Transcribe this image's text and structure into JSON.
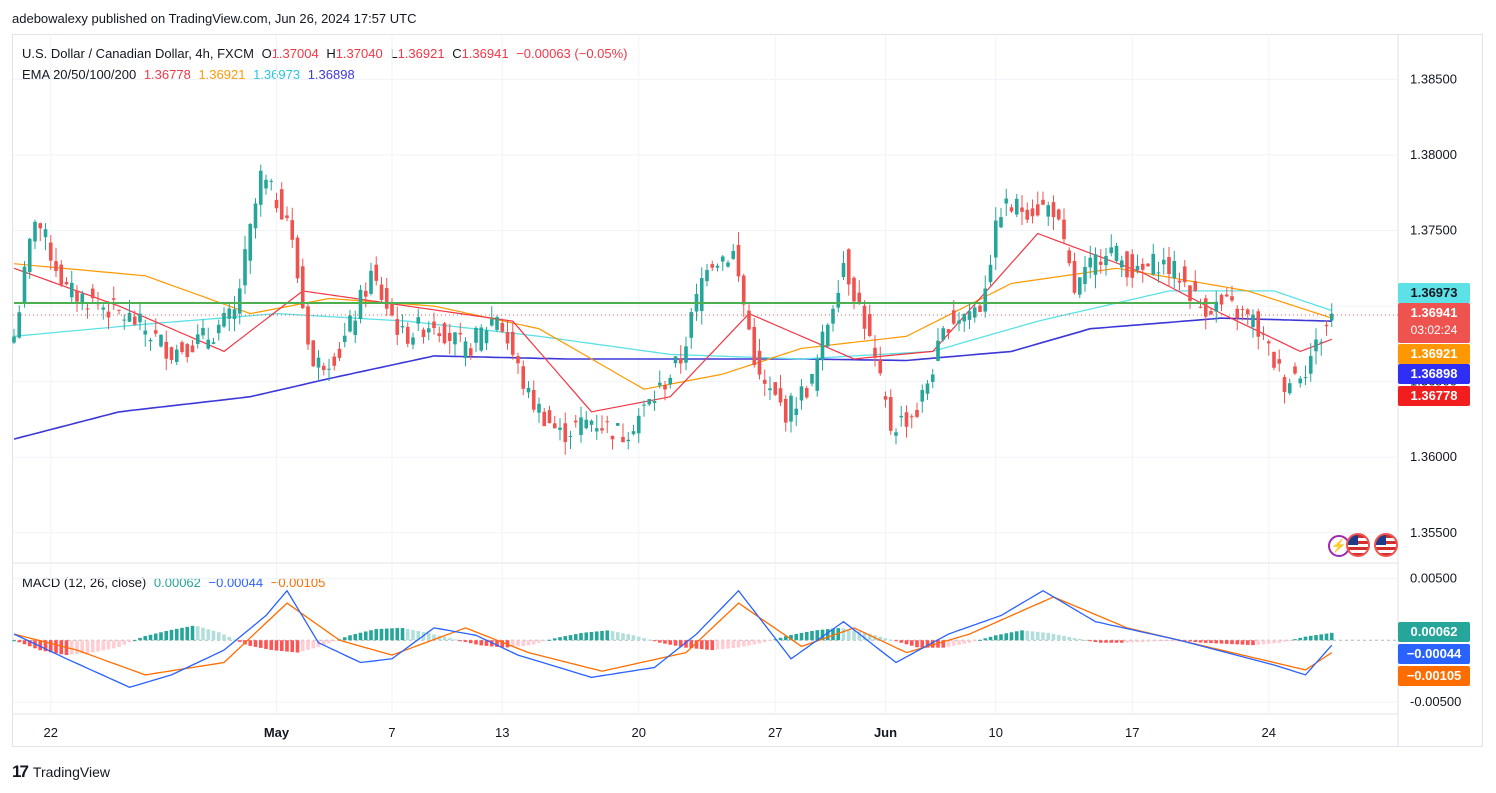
{
  "header": {
    "publisher": "adebowalexy published on TradingView.com, Jun 26, 2024 17:57 UTC"
  },
  "legend": {
    "symbol": "U.S. Dollar / Canadian Dollar, 4h, FXCM",
    "o_label": "O",
    "o_value": "1.37004",
    "h_label": "H",
    "h_value": "1.37040",
    "l_label": "L",
    "l_value": "1.36921",
    "c_label": "C",
    "c_value": "1.36941",
    "change": "−0.00063 (−0.05%)",
    "ema_label": "EMA 20/50/100/200",
    "ema20": "1.36778",
    "ema50": "1.36921",
    "ema100": "1.36973",
    "ema200": "1.36898",
    "macd_label": "MACD (12, 26, close)",
    "macd_hist": "0.00062",
    "macd_line": "−0.00044",
    "macd_signal": "−0.00105"
  },
  "badges": {
    "ema100": "1.36973",
    "price": "1.36941",
    "countdown": "03:02:24",
    "ema50": "1.36921",
    "ema200": "1.36898",
    "ema20": "1.36778",
    "macd_hist": "0.00062",
    "macd_line": "−0.00044",
    "macd_signal": "−0.00105"
  },
  "colors": {
    "up": "#26a69a",
    "down": "#ef5350",
    "ema20": "#f23645",
    "ema50": "#ff9800",
    "ema100": "#5ce1e6",
    "ema200": "#3c38d8",
    "resistance": "#4caf50",
    "macd": "#2962ff",
    "signal": "#ff6d00"
  },
  "footer": {
    "brand": "TradingView"
  },
  "chart_data": [
    {
      "type": "candlestick",
      "title": "U.S. Dollar / Canadian Dollar, 4h, FXCM",
      "ylim": [
        1.353,
        1.388
      ],
      "y_ticks": [
        "1.38500",
        "1.38000",
        "1.37500",
        "1.37000",
        "1.36500",
        "1.36000",
        "1.35500"
      ],
      "y_tick_values": [
        1.385,
        1.38,
        1.375,
        1.37,
        1.365,
        1.36,
        1.355
      ],
      "x_ticks": [
        "22",
        "May",
        "7",
        "13",
        "20",
        "27",
        "Jun",
        "10",
        "17",
        "24"
      ],
      "x_tick_index": [
        7,
        50,
        72,
        93,
        119,
        145,
        166,
        187,
        213,
        239
      ],
      "close_anchors": [
        [
          0,
          1.368
        ],
        [
          4,
          1.376
        ],
        [
          10,
          1.371
        ],
        [
          17,
          1.37
        ],
        [
          23,
          1.369
        ],
        [
          30,
          1.367
        ],
        [
          37,
          1.368
        ],
        [
          42,
          1.3695
        ],
        [
          47,
          1.3785
        ],
        [
          52,
          1.376
        ],
        [
          57,
          1.366
        ],
        [
          62,
          1.367
        ],
        [
          68,
          1.372
        ],
        [
          74,
          1.368
        ],
        [
          80,
          1.369
        ],
        [
          86,
          1.367
        ],
        [
          92,
          1.3695
        ],
        [
          98,
          1.364
        ],
        [
          104,
          1.3615
        ],
        [
          110,
          1.3625
        ],
        [
          116,
          1.3615
        ],
        [
          122,
          1.364
        ],
        [
          127,
          1.3665
        ],
        [
          132,
          1.373
        ],
        [
          137,
          1.3735
        ],
        [
          142,
          1.365
        ],
        [
          147,
          1.363
        ],
        [
          152,
          1.365
        ],
        [
          158,
          1.373
        ],
        [
          162,
          1.369
        ],
        [
          167,
          1.362
        ],
        [
          172,
          1.363
        ],
        [
          178,
          1.369
        ],
        [
          184,
          1.37
        ],
        [
          188,
          1.3765
        ],
        [
          194,
          1.3765
        ],
        [
          198,
          1.3765
        ],
        [
          202,
          1.371
        ],
        [
          208,
          1.374
        ],
        [
          214,
          1.372
        ],
        [
          218,
          1.373
        ],
        [
          222,
          1.372
        ],
        [
          226,
          1.37
        ],
        [
          231,
          1.37
        ],
        [
          236,
          1.369
        ],
        [
          242,
          1.365
        ],
        [
          246,
          1.366
        ],
        [
          251,
          1.3694
        ]
      ],
      "ema": {
        "ema20": [
          [
            0,
            1.3725
          ],
          [
            20,
            1.37
          ],
          [
            40,
            1.367
          ],
          [
            55,
            1.371
          ],
          [
            75,
            1.37
          ],
          [
            95,
            1.369
          ],
          [
            110,
            1.363
          ],
          [
            125,
            1.364
          ],
          [
            140,
            1.3695
          ],
          [
            160,
            1.3665
          ],
          [
            175,
            1.367
          ],
          [
            195,
            1.3748
          ],
          [
            215,
            1.3722
          ],
          [
            230,
            1.3695
          ],
          [
            245,
            1.367
          ],
          [
            251,
            1.3678
          ]
        ],
        "ema50": [
          [
            0,
            1.3728
          ],
          [
            25,
            1.372
          ],
          [
            45,
            1.3695
          ],
          [
            60,
            1.3705
          ],
          [
            80,
            1.37
          ],
          [
            100,
            1.3685
          ],
          [
            120,
            1.3645
          ],
          [
            135,
            1.3655
          ],
          [
            150,
            1.3672
          ],
          [
            170,
            1.368
          ],
          [
            190,
            1.3715
          ],
          [
            210,
            1.3725
          ],
          [
            235,
            1.371
          ],
          [
            251,
            1.3692
          ]
        ],
        "ema100": [
          [
            0,
            1.368
          ],
          [
            25,
            1.3688
          ],
          [
            50,
            1.3695
          ],
          [
            75,
            1.369
          ],
          [
            100,
            1.368
          ],
          [
            125,
            1.3668
          ],
          [
            150,
            1.3665
          ],
          [
            175,
            1.367
          ],
          [
            195,
            1.369
          ],
          [
            220,
            1.371
          ],
          [
            240,
            1.371
          ],
          [
            251,
            1.3697
          ]
        ],
        "ema200": [
          [
            0,
            1.3612
          ],
          [
            20,
            1.363
          ],
          [
            45,
            1.364
          ],
          [
            60,
            1.3652
          ],
          [
            80,
            1.3667
          ],
          [
            105,
            1.3665
          ],
          [
            130,
            1.3665
          ],
          [
            150,
            1.3665
          ],
          [
            170,
            1.3664
          ],
          [
            190,
            1.367
          ],
          [
            205,
            1.3685
          ],
          [
            230,
            1.3692
          ],
          [
            251,
            1.369
          ]
        ]
      },
      "resistance_line": {
        "x": [
          0,
          229
        ],
        "y": 1.3702
      },
      "current_price": 1.36941
    },
    {
      "type": "macd",
      "title": "MACD (12, 26, close)",
      "ylim": [
        -0.0058,
        0.006
      ],
      "y_ticks": [
        "0.00500",
        "-0.00500"
      ],
      "y_tick_values": [
        0.005,
        -0.005
      ],
      "macd_line": [
        [
          0,
          0.0005
        ],
        [
          10,
          -0.0015
        ],
        [
          22,
          -0.0038
        ],
        [
          30,
          -0.0028
        ],
        [
          40,
          -0.0008
        ],
        [
          48,
          0.002
        ],
        [
          52,
          0.004
        ],
        [
          58,
          -0.0002
        ],
        [
          66,
          -0.0018
        ],
        [
          72,
          -0.0015
        ],
        [
          80,
          0.001
        ],
        [
          88,
          0.0004
        ],
        [
          96,
          -0.0012
        ],
        [
          110,
          -0.003
        ],
        [
          122,
          -0.0022
        ],
        [
          130,
          0.0005
        ],
        [
          138,
          0.004
        ],
        [
          148,
          -0.0015
        ],
        [
          158,
          0.0015
        ],
        [
          168,
          -0.0018
        ],
        [
          178,
          0.0005
        ],
        [
          188,
          0.002
        ],
        [
          196,
          0.004
        ],
        [
          206,
          0.0015
        ],
        [
          222,
          0.0
        ],
        [
          240,
          -0.002
        ],
        [
          246,
          -0.0028
        ],
        [
          251,
          -0.0004
        ]
      ],
      "signal_line": [
        [
          0,
          0.0005
        ],
        [
          12,
          -0.0008
        ],
        [
          25,
          -0.0028
        ],
        [
          40,
          -0.0018
        ],
        [
          52,
          0.003
        ],
        [
          62,
          0.0
        ],
        [
          72,
          -0.0012
        ],
        [
          86,
          0.001
        ],
        [
          98,
          -0.001
        ],
        [
          112,
          -0.0025
        ],
        [
          128,
          -0.001
        ],
        [
          138,
          0.003
        ],
        [
          150,
          -0.0005
        ],
        [
          160,
          0.001
        ],
        [
          170,
          -0.001
        ],
        [
          182,
          0.0005
        ],
        [
          198,
          0.0035
        ],
        [
          212,
          0.001
        ],
        [
          230,
          -0.0008
        ],
        [
          246,
          -0.0024
        ],
        [
          251,
          -0.001
        ]
      ],
      "histogram_values": [
        0.0,
        -0.0008,
        -0.0012,
        -0.001,
        -0.0006,
        0.0003,
        0.0008,
        0.0012,
        0.0006,
        -0.0004,
        -0.0008,
        -0.001,
        -0.0004,
        0.0004,
        0.0009,
        0.001,
        0.0006,
        0.0001,
        -0.0004,
        -0.0006,
        -0.0004,
        0.0002,
        0.0006,
        0.0008,
        0.0004,
        -0.0002,
        -0.0006,
        -0.0008,
        -0.0006,
        -0.0002,
        0.0004,
        0.0008,
        0.001,
        0.0006,
        0.0,
        -0.0006,
        -0.0006,
        -0.0002,
        0.0004,
        0.0008,
        0.0006,
        0.0002,
        -0.0002,
        -0.0002,
        -0.0001,
        0.0,
        -0.0002,
        -0.0003,
        -0.0004,
        -0.0002,
        0.0003,
        0.0006
      ]
    }
  ]
}
